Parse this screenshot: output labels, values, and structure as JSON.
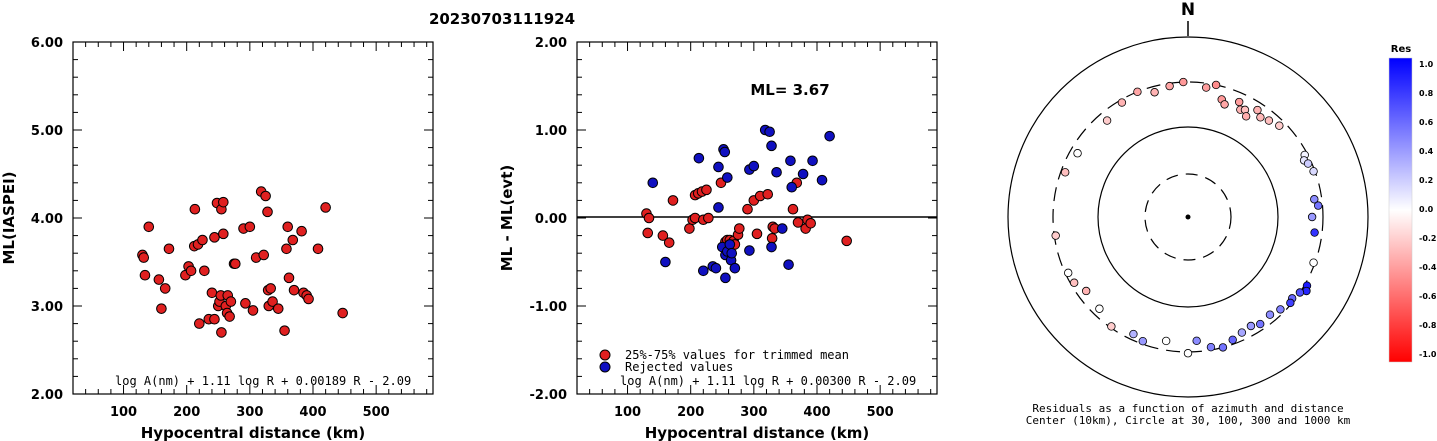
{
  "figure_title": "20230703111924",
  "chart_data": [
    {
      "type": "scatter",
      "panel": "left",
      "xlabel": "Hypocentral distance (km)",
      "ylabel": "ML(IASPEI)",
      "xlim": [
        20,
        590
      ],
      "ylim": [
        2.0,
        6.0
      ],
      "xticks": [
        100,
        200,
        300,
        400,
        500
      ],
      "yticks": [
        "2.00",
        "3.00",
        "4.00",
        "5.00",
        "6.00"
      ],
      "formula": "log A(nm) + 1.11 log R + 0.00189 R - 2.09",
      "color": "#e02020",
      "points": [
        [
          130,
          3.58
        ],
        [
          132,
          3.55
        ],
        [
          134,
          3.35
        ],
        [
          140,
          3.9
        ],
        [
          156,
          3.3
        ],
        [
          160,
          2.97
        ],
        [
          166,
          3.2
        ],
        [
          172,
          3.65
        ],
        [
          198,
          3.35
        ],
        [
          203,
          3.45
        ],
        [
          207,
          3.4
        ],
        [
          212,
          3.68
        ],
        [
          213,
          4.1
        ],
        [
          218,
          3.7
        ],
        [
          220,
          2.8
        ],
        [
          225,
          3.75
        ],
        [
          228,
          3.4
        ],
        [
          235,
          2.85
        ],
        [
          240,
          3.15
        ],
        [
          244,
          3.78
        ],
        [
          244,
          2.85
        ],
        [
          248,
          4.17
        ],
        [
          250,
          3.0
        ],
        [
          252,
          3.05
        ],
        [
          254,
          3.12
        ],
        [
          255,
          4.1
        ],
        [
          255,
          2.7
        ],
        [
          258,
          3.82
        ],
        [
          258,
          4.18
        ],
        [
          262,
          3.0
        ],
        [
          264,
          2.92
        ],
        [
          265,
          3.12
        ],
        [
          268,
          2.88
        ],
        [
          270,
          3.05
        ],
        [
          275,
          3.48
        ],
        [
          277,
          3.48
        ],
        [
          290,
          3.88
        ],
        [
          293,
          3.03
        ],
        [
          300,
          3.9
        ],
        [
          305,
          2.95
        ],
        [
          310,
          3.55
        ],
        [
          318,
          4.3
        ],
        [
          322,
          3.58
        ],
        [
          325,
          4.25
        ],
        [
          328,
          4.07
        ],
        [
          329,
          3.18
        ],
        [
          330,
          3.0
        ],
        [
          333,
          3.2
        ],
        [
          336,
          3.05
        ],
        [
          345,
          2.97
        ],
        [
          355,
          2.72
        ],
        [
          358,
          3.65
        ],
        [
          360,
          3.9
        ],
        [
          362,
          3.32
        ],
        [
          368,
          3.75
        ],
        [
          370,
          3.18
        ],
        [
          382,
          3.85
        ],
        [
          385,
          3.15
        ],
        [
          390,
          3.12
        ],
        [
          393,
          3.08
        ],
        [
          408,
          3.65
        ],
        [
          420,
          4.12
        ],
        [
          447,
          2.92
        ]
      ]
    },
    {
      "type": "scatter",
      "panel": "middle",
      "xlabel": "Hypocentral distance (km)",
      "ylabel": "ML - ML(evt)",
      "xlim": [
        20,
        590
      ],
      "ylim": [
        -2.0,
        2.0
      ],
      "xticks": [
        100,
        200,
        300,
        400,
        500
      ],
      "yticks": [
        "-2.00",
        "-1.00",
        "0.00",
        "1.00",
        "2.00"
      ],
      "annotation": "ML= 3.67",
      "formula": "log A(nm) + 1.11 log R + 0.00300 R - 2.09",
      "legend": [
        "25%-75% values for trimmed mean",
        "Rejected values"
      ],
      "legend_position": "bottom-left",
      "series": [
        {
          "name": "25%-75% values for trimmed mean",
          "color": "#e02020",
          "points": [
            [
              130,
              0.05
            ],
            [
              132,
              -0.17
            ],
            [
              134,
              0.0
            ],
            [
              156,
              -0.2
            ],
            [
              166,
              -0.28
            ],
            [
              172,
              0.2
            ],
            [
              198,
              -0.12
            ],
            [
              203,
              -0.02
            ],
            [
              207,
              0.0
            ],
            [
              207,
              0.26
            ],
            [
              212,
              0.28
            ],
            [
              218,
              0.3
            ],
            [
              220,
              -0.02
            ],
            [
              225,
              0.32
            ],
            [
              228,
              0.0
            ],
            [
              248,
              0.4
            ],
            [
              255,
              -0.27
            ],
            [
              258,
              -0.25
            ],
            [
              262,
              -0.25
            ],
            [
              268,
              -0.26
            ],
            [
              270,
              -0.3
            ],
            [
              275,
              -0.19
            ],
            [
              277,
              -0.12
            ],
            [
              290,
              0.1
            ],
            [
              300,
              0.2
            ],
            [
              305,
              -0.18
            ],
            [
              310,
              0.25
            ],
            [
              322,
              0.27
            ],
            [
              329,
              -0.23
            ],
            [
              330,
              -0.1
            ],
            [
              333,
              -0.12
            ],
            [
              362,
              0.1
            ],
            [
              368,
              0.4
            ],
            [
              370,
              -0.05
            ],
            [
              382,
              -0.12
            ],
            [
              385,
              -0.02
            ],
            [
              390,
              -0.06
            ],
            [
              447,
              -0.26
            ]
          ]
        },
        {
          "name": "Rejected values",
          "color": "#1010c0",
          "points": [
            [
              140,
              0.4
            ],
            [
              160,
              -0.5
            ],
            [
              213,
              0.68
            ],
            [
              220,
              -0.6
            ],
            [
              235,
              -0.55
            ],
            [
              240,
              -0.57
            ],
            [
              244,
              0.12
            ],
            [
              244,
              0.58
            ],
            [
              250,
              -0.33
            ],
            [
              252,
              0.78
            ],
            [
              254,
              0.75
            ],
            [
              255,
              -0.42
            ],
            [
              255,
              -0.68
            ],
            [
              258,
              0.46
            ],
            [
              258,
              -0.38
            ],
            [
              262,
              -0.3
            ],
            [
              264,
              -0.48
            ],
            [
              265,
              -0.4
            ],
            [
              270,
              -0.57
            ],
            [
              293,
              -0.37
            ],
            [
              293,
              0.55
            ],
            [
              300,
              0.59
            ],
            [
              318,
              1.0
            ],
            [
              325,
              0.98
            ],
            [
              328,
              0.82
            ],
            [
              328,
              -0.33
            ],
            [
              336,
              0.52
            ],
            [
              345,
              -0.12
            ],
            [
              355,
              -0.53
            ],
            [
              358,
              0.65
            ],
            [
              360,
              0.35
            ],
            [
              378,
              0.5
            ],
            [
              393,
              0.65
            ],
            [
              408,
              0.43
            ],
            [
              420,
              0.93
            ]
          ]
        }
      ]
    },
    {
      "type": "polar-scatter",
      "panel": "right",
      "north_label": "N",
      "caption_line1": "Residuals as a function of azimuth and distance",
      "caption_line2": "Center (10km), Circle at 30, 100, 300 and 1000 km",
      "rings_km": [
        30,
        100,
        300,
        1000
      ],
      "points": [
        {
          "az": 16,
          "dist": 220,
          "res": -0.4
        },
        {
          "az": 18,
          "dist": 200,
          "res": -0.35
        },
        {
          "az": 24,
          "dist": 240,
          "res": -0.38
        },
        {
          "az": 26,
          "dist": 205,
          "res": -0.3
        },
        {
          "az": 28,
          "dist": 215,
          "res": -0.25
        },
        {
          "az": 30,
          "dist": 190,
          "res": -0.32
        },
        {
          "az": 33,
          "dist": 250,
          "res": -0.3
        },
        {
          "az": 36,
          "dist": 225,
          "res": -0.28
        },
        {
          "az": 40,
          "dist": 240,
          "res": -0.25
        },
        {
          "az": 45,
          "dist": 260,
          "res": -0.2
        },
        {
          "az": 62,
          "dist": 280,
          "res": 0.05
        },
        {
          "az": 64,
          "dist": 260,
          "res": 0.1
        },
        {
          "az": 66,
          "dist": 275,
          "res": 0.2
        },
        {
          "az": 70,
          "dist": 290,
          "res": 0.15
        },
        {
          "az": 82,
          "dist": 250,
          "res": 0.45
        },
        {
          "az": 85,
          "dist": 270,
          "res": 0.55
        },
        {
          "az": 90,
          "dist": 230,
          "res": 0.4
        },
        {
          "az": 97,
          "dist": 250,
          "res": 0.8
        },
        {
          "az": 110,
          "dist": 290,
          "res": 0.0
        },
        {
          "az": 120,
          "dist": 320,
          "res": 0.9
        },
        {
          "az": 122,
          "dist": 340,
          "res": 0.85
        },
        {
          "az": 124,
          "dist": 300,
          "res": 0.7
        },
        {
          "az": 128,
          "dist": 280,
          "res": 0.6
        },
        {
          "az": 130,
          "dist": 290,
          "res": 0.75
        },
        {
          "az": 135,
          "dist": 270,
          "res": 0.5
        },
        {
          "az": 140,
          "dist": 250,
          "res": 0.45
        },
        {
          "az": 146,
          "dist": 260,
          "res": 0.55
        },
        {
          "az": 150,
          "dist": 240,
          "res": 0.4
        },
        {
          "az": 155,
          "dist": 250,
          "res": 0.35
        },
        {
          "az": 160,
          "dist": 270,
          "res": 0.6
        },
        {
          "az": 165,
          "dist": 300,
          "res": 0.55
        },
        {
          "az": 170,
          "dist": 280,
          "res": 0.5
        },
        {
          "az": 176,
          "dist": 230,
          "res": 0.45
        },
        {
          "az": 180,
          "dist": 310,
          "res": 0.0
        },
        {
          "az": 190,
          "dist": 240,
          "res": 0.0
        },
        {
          "az": 200,
          "dist": 280,
          "res": 0.4
        },
        {
          "az": 205,
          "dist": 260,
          "res": 0.3
        },
        {
          "az": 215,
          "dist": 290,
          "res": -0.2
        },
        {
          "az": 224,
          "dist": 250,
          "res": 0.0
        },
        {
          "az": 234,
          "dist": 240,
          "res": -0.3
        },
        {
          "az": 240,
          "dist": 275,
          "res": -0.25
        },
        {
          "az": 245,
          "dist": 280,
          "res": 0.0
        },
        {
          "az": 262,
          "dist": 290,
          "res": -0.2
        },
        {
          "az": 290,
          "dist": 270,
          "res": -0.25
        },
        {
          "az": 300,
          "dist": 250,
          "res": 0.0
        },
        {
          "az": 320,
          "dist": 240,
          "res": -0.2
        },
        {
          "az": 330,
          "dist": 280,
          "res": -0.3
        },
        {
          "az": 338,
          "dist": 300,
          "res": -0.35
        },
        {
          "az": 345,
          "dist": 260,
          "res": -0.3
        },
        {
          "az": 352,
          "dist": 280,
          "res": -0.35
        },
        {
          "az": 358,
          "dist": 300,
          "res": -0.4
        },
        {
          "az": 8,
          "dist": 270,
          "res": -0.38
        },
        {
          "az": 12,
          "dist": 300,
          "res": -0.45
        }
      ]
    },
    {
      "type": "colorbar",
      "title": "Res",
      "ticks": [
        "1.0",
        "0.8",
        "0.6",
        "0.4",
        "0.2",
        "0.0",
        "-0.2",
        "-0.4",
        "-0.6",
        "-0.8",
        "-1.0"
      ]
    }
  ]
}
